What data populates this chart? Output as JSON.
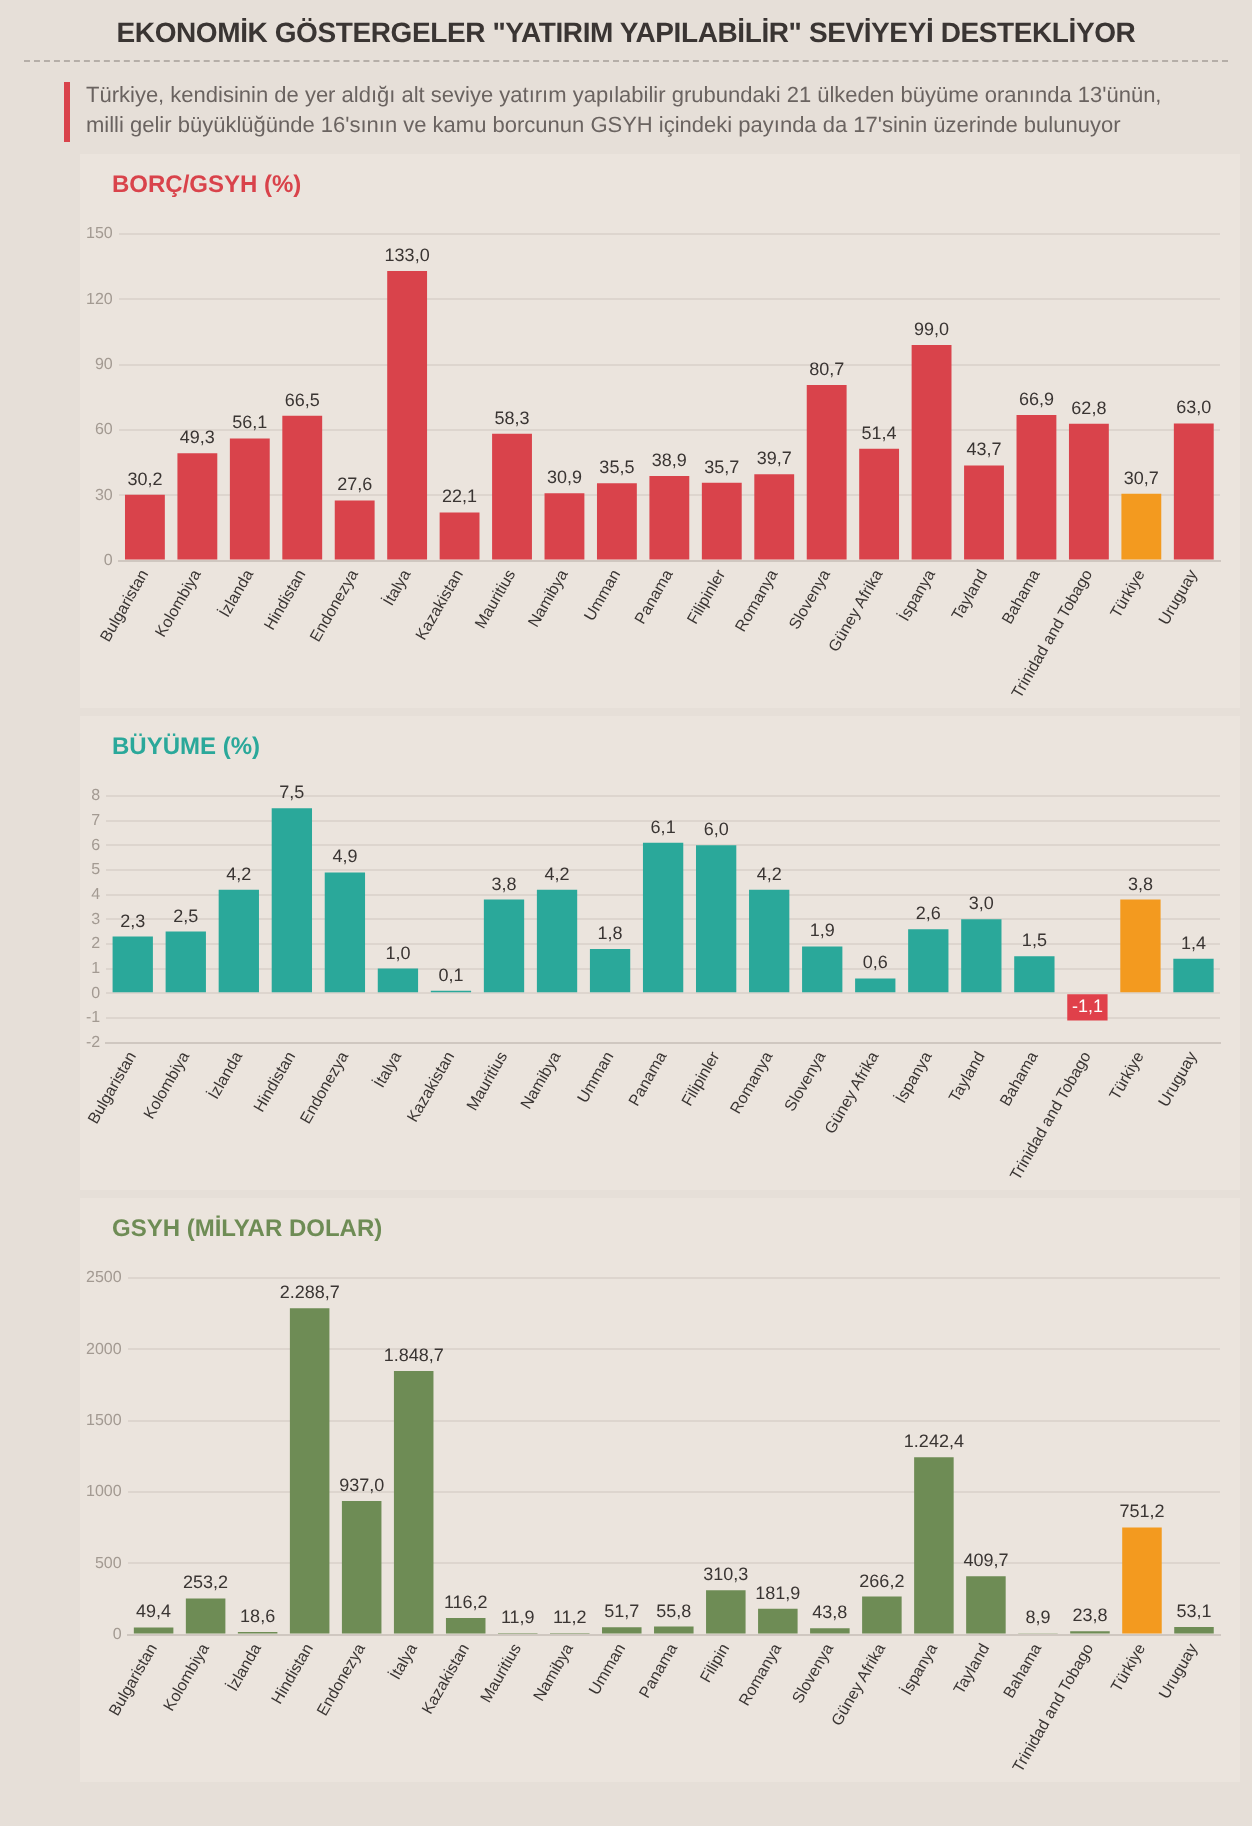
{
  "chart_data": [
    {
      "type": "other",
      "title": "EKONOMİK GÖSTERGELER \"YATIRIM YAPILABİLİR\" SEVİYEYİ DESTEKLİYOR",
      "subtitle": "Türkiye, kendisinin de yer aldığı alt seviye yatırım yapılabilir grubundaki 21 ülkeden büyüme oranında 13'ünün, milli gelir büyüklüğünde 16'sının ve kamu borcunun GSYH içindeki payında da 17'sinin üzerinde bulunuyor"
    },
    {
      "type": "bar",
      "title": "BORÇ/GSYH (%)",
      "categories": [
        "Bulgaristan",
        "Kolombiya",
        "İzlanda",
        "Hindistan",
        "Endonezya",
        "İtalya",
        "Kazakistan",
        "Mauritius",
        "Namibya",
        "Umman",
        "Panama",
        "Filipinler",
        "Romanya",
        "Slovenya",
        "Güney Afrika",
        "İspanya",
        "Tayland",
        "Bahama",
        "Trinidad and Tobago",
        "Türkiye",
        "Uruguay"
      ],
      "values": [
        30.2,
        49.3,
        56.1,
        66.5,
        27.6,
        133.0,
        22.1,
        58.3,
        30.9,
        35.5,
        38.9,
        35.7,
        39.7,
        80.7,
        51.4,
        99.0,
        43.7,
        66.9,
        62.8,
        30.7,
        63.0
      ],
      "value_labels": [
        "30,2",
        "49,3",
        "56,1",
        "66,5",
        "27,6",
        "133,0",
        "22,1",
        "58,3",
        "30,9",
        "35,5",
        "38,9",
        "35,7",
        "39,7",
        "80,7",
        "51,4",
        "99,0",
        "43,7",
        "66,9",
        "62,8",
        "30,7",
        "63,0"
      ],
      "colors": [
        "#d9434b",
        "#d9434b",
        "#d9434b",
        "#d9434b",
        "#d9434b",
        "#d9434b",
        "#d9434b",
        "#d9434b",
        "#d9434b",
        "#d9434b",
        "#d9434b",
        "#d9434b",
        "#d9434b",
        "#d9434b",
        "#d9434b",
        "#d9434b",
        "#d9434b",
        "#d9434b",
        "#d9434b",
        "#f39a1f",
        "#d9434b"
      ],
      "ylim": [
        0,
        150
      ],
      "yticks": [
        0,
        30,
        60,
        90,
        120,
        150
      ],
      "grid": "y",
      "legend": false
    },
    {
      "type": "bar",
      "title": "BÜYÜME (%)",
      "categories": [
        "Bulgaristan",
        "Kolombiya",
        "İzlanda",
        "Hindistan",
        "Endonezya",
        "İtalya",
        "Kazakistan",
        "Mauritius",
        "Namibya",
        "Umman",
        "Panama",
        "Filipinler",
        "Romanya",
        "Slovenya",
        "Güney Afrika",
        "İspanya",
        "Tayland",
        "Bahama",
        "Trinidad and Tobago",
        "Türkiye",
        "Uruguay"
      ],
      "values": [
        2.3,
        2.5,
        4.2,
        7.5,
        4.9,
        1.0,
        0.1,
        3.8,
        4.2,
        1.8,
        6.1,
        6.0,
        4.2,
        1.9,
        0.6,
        2.6,
        3.0,
        1.5,
        -1.1,
        3.8,
        1.4
      ],
      "value_labels": [
        "2,3",
        "2,5",
        "4,2",
        "7,5",
        "4,9",
        "1,0",
        "0,1",
        "3,8",
        "4,2",
        "1,8",
        "6,1",
        "6,0",
        "4,2",
        "1,9",
        "0,6",
        "2,6",
        "3,0",
        "1,5",
        "-1,1",
        "3,8",
        "1,4"
      ],
      "colors": [
        "#2aa89a",
        "#2aa89a",
        "#2aa89a",
        "#2aa89a",
        "#2aa89a",
        "#2aa89a",
        "#2aa89a",
        "#2aa89a",
        "#2aa89a",
        "#2aa89a",
        "#2aa89a",
        "#2aa89a",
        "#2aa89a",
        "#2aa89a",
        "#2aa89a",
        "#2aa89a",
        "#2aa89a",
        "#2aa89a",
        "#e0404a",
        "#f39a1f",
        "#2aa89a"
      ],
      "ylim": [
        -2,
        8
      ],
      "yticks": [
        -2,
        -1,
        0,
        1,
        2,
        3,
        4,
        5,
        6,
        7,
        8
      ],
      "grid": "y",
      "legend": false
    },
    {
      "type": "bar",
      "title": "GSYH (MİLYAR DOLAR)",
      "categories": [
        "Bulgaristan",
        "Kolombiya",
        "İzlanda",
        "Hindistan",
        "Endonezya",
        "İtalya",
        "Kazakistan",
        "Mauritius",
        "Namibya",
        "Umman",
        "Panama",
        "Filipin",
        "Romanya",
        "Slovenya",
        "Güney Afrika",
        "İspanya",
        "Tayland",
        "Bahama",
        "Trinidad and Tobago",
        "Türkiye",
        "Uruguay"
      ],
      "values": [
        49.4,
        253.2,
        18.6,
        2288.7,
        937.0,
        1848.7,
        116.2,
        11.9,
        11.2,
        51.7,
        55.8,
        310.3,
        181.9,
        43.8,
        266.2,
        1242.4,
        409.7,
        8.9,
        23.8,
        751.2,
        53.1
      ],
      "value_labels": [
        "49,4",
        "253,2",
        "18,6",
        "2.288,7",
        "937,0",
        "1.848,7",
        "116,2",
        "11,9",
        "11,2",
        "51,7",
        "55,8",
        "310,3",
        "181,9",
        "43,8",
        "266,2",
        "1.242,4",
        "409,7",
        "8,9",
        "23,8",
        "751,2",
        "53,1"
      ],
      "colors": [
        "#6e8c55",
        "#6e8c55",
        "#6e8c55",
        "#6e8c55",
        "#6e8c55",
        "#6e8c55",
        "#6e8c55",
        "#6e8c55",
        "#6e8c55",
        "#6e8c55",
        "#6e8c55",
        "#6e8c55",
        "#6e8c55",
        "#6e8c55",
        "#6e8c55",
        "#6e8c55",
        "#6e8c55",
        "#6e8c55",
        "#6e8c55",
        "#f39a1f",
        "#6e8c55"
      ],
      "ylim": [
        0,
        2500
      ],
      "yticks": [
        0,
        500,
        1000,
        1500,
        2000,
        2500
      ],
      "grid": "y",
      "legend": false
    }
  ]
}
